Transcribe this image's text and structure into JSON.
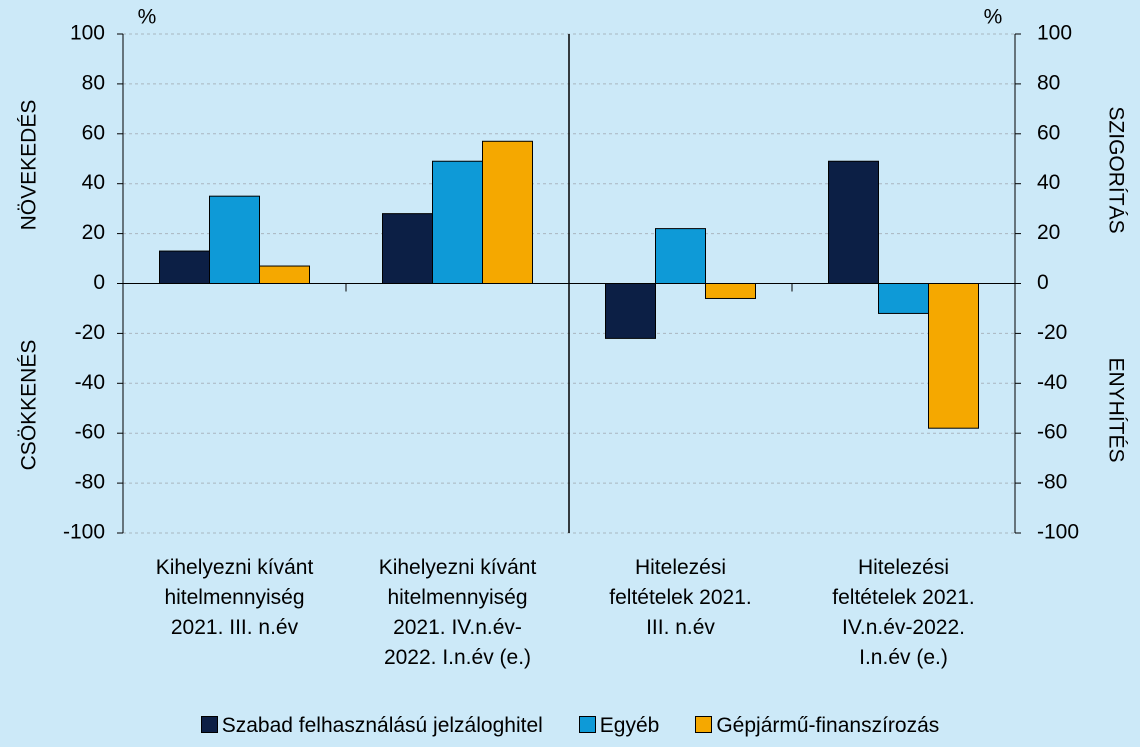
{
  "chart_data": {
    "type": "bar",
    "categories": [
      "Kihelyezni kívánt\nhitelmennyiség\n2021. III. n.év",
      "Kihelyezni kívánt\nhitelmennyiség\n2021. IV.n.év-\n2022. I.n.év (e.)",
      "Hitelezési\nfeltételek 2021.\nIII. n.év",
      "Hitelezési\nfeltételek 2021.\nIV.n.év-2022.\nI.n.év (e.)"
    ],
    "series": [
      {
        "name": "Szabad felhasználású jelzáloghitel",
        "color": "#0c1f45",
        "values": [
          13,
          28,
          -22,
          49
        ]
      },
      {
        "name": "Egyéb",
        "color": "#0e9ad7",
        "values": [
          35,
          49,
          22,
          -12
        ]
      },
      {
        "name": "Gépjármű-finanszírozás",
        "color": "#f5a800",
        "values": [
          7,
          57,
          -6,
          -58
        ]
      }
    ],
    "ylim": [
      -100,
      100
    ],
    "yticks": [
      -100,
      -80,
      -60,
      -40,
      -20,
      0,
      20,
      40,
      60,
      80,
      100
    ],
    "y2lim": [
      -100,
      100
    ],
    "y2ticks": [
      -100,
      -80,
      -60,
      -40,
      -20,
      0,
      20,
      40,
      60,
      80,
      100
    ],
    "y_unit": "%",
    "y2_unit": "%",
    "y_label_upper": "NÖVEKEDÉS",
    "y_label_lower": "CSÖKKENÉS",
    "y2_label_upper": "SZIGORÍTÁS",
    "y2_label_lower": "ENYHÍTÉS",
    "grid": true,
    "legend": "bottom"
  }
}
